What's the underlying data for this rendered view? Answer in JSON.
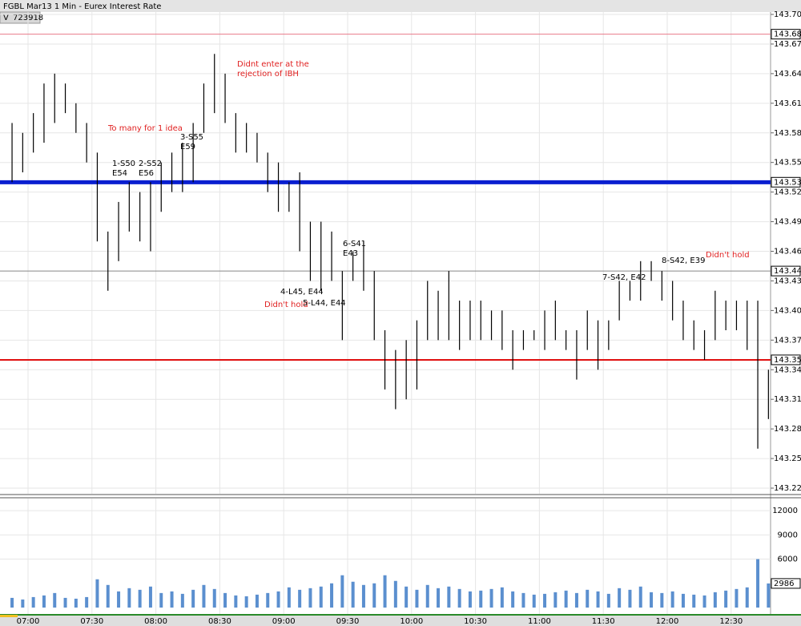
{
  "header": {
    "title": "FGBL Mar13 1 Min - Eurex Interest Rate",
    "volume_label": "V",
    "volume_total": "723918"
  },
  "chart_data": {
    "type": "ohlc",
    "color": "#000000",
    "x": [
      "06:50",
      "06:55",
      "07:00",
      "07:05",
      "07:10",
      "07:15",
      "07:20",
      "07:25",
      "07:30",
      "07:35",
      "07:40",
      "07:45",
      "07:50",
      "07:55",
      "08:00",
      "08:05",
      "08:10",
      "08:15",
      "08:20",
      "08:25",
      "08:30",
      "08:35",
      "08:40",
      "08:45",
      "08:50",
      "08:55",
      "09:00",
      "09:05",
      "09:10",
      "09:15",
      "09:20",
      "09:25",
      "09:30",
      "09:35",
      "09:40",
      "09:45",
      "09:50",
      "09:55",
      "10:00",
      "10:05",
      "10:10",
      "10:15",
      "10:20",
      "10:25",
      "10:30",
      "10:35",
      "10:40",
      "10:45",
      "10:50",
      "10:55",
      "11:00",
      "11:05",
      "11:10",
      "11:15",
      "11:20",
      "11:25",
      "11:30",
      "11:35",
      "11:40",
      "11:45",
      "11:50",
      "11:55",
      "12:00",
      "12:05",
      "12:10",
      "12:15",
      "12:20",
      "12:25",
      "12:30",
      "12:35",
      "12:40",
      "12:45"
    ],
    "high": [
      143.59,
      143.58,
      143.6,
      143.63,
      143.64,
      143.63,
      143.61,
      143.59,
      143.56,
      143.48,
      143.51,
      143.53,
      143.52,
      143.53,
      143.55,
      143.56,
      143.57,
      143.59,
      143.63,
      143.66,
      143.64,
      143.6,
      143.59,
      143.58,
      143.56,
      143.55,
      143.53,
      143.54,
      143.49,
      143.49,
      143.48,
      143.44,
      143.46,
      143.47,
      143.44,
      143.38,
      143.36,
      143.37,
      143.39,
      143.43,
      143.42,
      143.44,
      143.41,
      143.41,
      143.41,
      143.4,
      143.4,
      143.38,
      143.38,
      143.38,
      143.4,
      143.41,
      143.38,
      143.38,
      143.4,
      143.39,
      143.39,
      143.43,
      143.43,
      143.45,
      143.45,
      143.44,
      143.43,
      143.41,
      143.39,
      143.38,
      143.42,
      143.41,
      143.41,
      143.41,
      143.41,
      143.34
    ],
    "low": [
      143.53,
      143.54,
      143.56,
      143.57,
      143.59,
      143.6,
      143.58,
      143.55,
      143.47,
      143.42,
      143.45,
      143.48,
      143.47,
      143.46,
      143.5,
      143.52,
      143.52,
      143.53,
      143.58,
      143.6,
      143.59,
      143.56,
      143.56,
      143.55,
      143.52,
      143.5,
      143.5,
      143.46,
      143.43,
      143.42,
      143.43,
      143.37,
      143.43,
      143.42,
      143.37,
      143.32,
      143.3,
      143.31,
      143.32,
      143.37,
      143.37,
      143.37,
      143.36,
      143.37,
      143.37,
      143.37,
      143.36,
      143.34,
      143.36,
      143.37,
      143.36,
      143.37,
      143.36,
      143.33,
      143.36,
      143.34,
      143.36,
      143.39,
      143.41,
      143.41,
      143.43,
      143.41,
      143.39,
      143.37,
      143.36,
      143.35,
      143.37,
      143.38,
      143.38,
      143.36,
      143.26,
      143.29
    ],
    "ylim": [
      143.22,
      143.7
    ],
    "yticks": [
      {
        "value": 143.7,
        "label": "143.70"
      },
      143.67,
      143.64,
      143.61,
      143.58,
      143.55,
      143.52,
      143.49,
      143.46,
      143.43,
      {
        "value": 143.4,
        "label": "143.40"
      },
      143.37,
      143.34,
      143.31,
      143.28,
      143.25,
      143.22
    ],
    "levels": [
      {
        "value": 143.68,
        "color": "#e87a8a",
        "width": 1
      },
      {
        "value": 143.53,
        "color": "#0a1fd0",
        "width": 5
      },
      {
        "value": 143.44,
        "color": "#888888",
        "width": 1
      },
      {
        "value": 143.35,
        "color": "#e01010",
        "width": 2
      }
    ],
    "grid": true,
    "volume": {
      "color": "#5b8fcf",
      "values": [
        1200,
        1000,
        1300,
        1500,
        1800,
        1200,
        1100,
        1300,
        3500,
        2800,
        2000,
        2400,
        2200,
        2600,
        1800,
        2000,
        1700,
        2200,
        2800,
        2300,
        1800,
        1500,
        1400,
        1600,
        1800,
        2000,
        2500,
        2200,
        2400,
        2600,
        3000,
        4000,
        3200,
        2800,
        3000,
        4000,
        3300,
        2600,
        2200,
        2800,
        2400,
        2600,
        2300,
        2000,
        2100,
        2300,
        2500,
        2000,
        1800,
        1600,
        1700,
        1900,
        2100,
        1800,
        2200,
        2000,
        1700,
        2400,
        2200,
        2600,
        1900,
        1800,
        2000,
        1700,
        1600,
        1500,
        1900,
        2100,
        2300,
        2500,
        6000,
        2986
      ],
      "ylim": [
        0,
        13500
      ],
      "yticks": [
        6000,
        9000,
        12000
      ]
    },
    "annotations": [
      {
        "lines": [
          "To many for 1 idea"
        ],
        "color": "#e02020"
      },
      {
        "lines": [
          "Didnt enter at the",
          "rejection of IBH"
        ],
        "color": "#e02020"
      },
      {
        "lines": [
          "1-S50",
          "E54"
        ],
        "color": "#000000"
      },
      {
        "lines": [
          "2-S52",
          "E56"
        ],
        "color": "#000000"
      },
      {
        "lines": [
          "3-S55",
          "E59"
        ],
        "color": "#000000"
      },
      {
        "lines": [
          "4-L45, E44"
        ],
        "color": "#000000"
      },
      {
        "lines": [
          "Didn't hold"
        ],
        "color": "#e02020"
      },
      {
        "lines": [
          "5-L44, E44"
        ],
        "color": "#000000"
      },
      {
        "lines": [
          "6-S41",
          "E43"
        ],
        "color": "#000000"
      },
      {
        "lines": [
          "7-S42, E42"
        ],
        "color": "#000000"
      },
      {
        "lines": [
          "8-S42, E39"
        ],
        "color": "#000000"
      },
      {
        "lines": [
          "Didn't hold"
        ],
        "color": "#e02020"
      }
    ]
  }
}
